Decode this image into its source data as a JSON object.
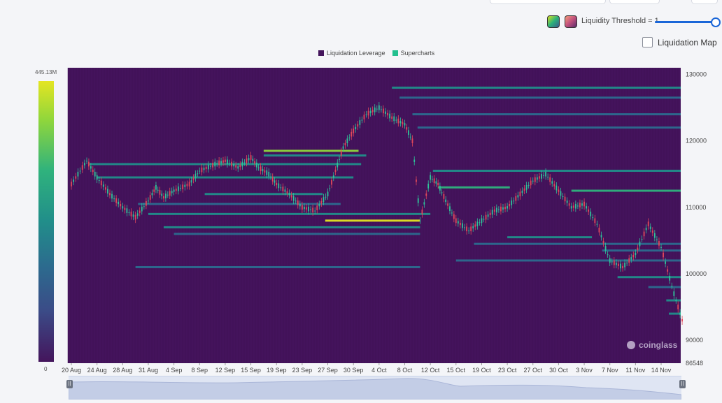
{
  "controls": {
    "threshold_label": "Liquidity Threshold = 1",
    "threshold_value": 1,
    "checkbox_label": "Liquidation Map",
    "checkbox_checked": false,
    "swatch_colors": [
      "#2bb27a",
      "#c04f7c"
    ]
  },
  "legend": {
    "items": [
      {
        "label": "Liquidation Leverage",
        "color": "#44155c"
      },
      {
        "label": "Supercharts",
        "color": "#23c08f"
      }
    ]
  },
  "color_scale": {
    "max_label": "445.13M",
    "min_label": "0"
  },
  "watermark": "coinglass",
  "navigator": {
    "handle_glyph": "||"
  },
  "chart_data": {
    "type": "heatmap",
    "title": "",
    "background_color": "#44135c",
    "y_range": [
      86548,
      131000
    ],
    "y_ticks": [
      {
        "value": 130000,
        "label": "130000"
      },
      {
        "value": 120000,
        "label": "120000"
      },
      {
        "value": 110000,
        "label": "110000"
      },
      {
        "value": 100000,
        "label": "100000"
      },
      {
        "value": 90000,
        "label": "90000"
      },
      {
        "value": 86548,
        "label": "86548"
      }
    ],
    "x_ticks": [
      "20 Aug",
      "24 Aug",
      "28 Aug",
      "31 Aug",
      "4 Sep",
      "8 Sep",
      "12 Sep",
      "15 Sep",
      "19 Sep",
      "23 Sep",
      "27 Sep",
      "30 Sep",
      "4 Oct",
      "8 Oct",
      "12 Oct",
      "15 Oct",
      "19 Oct",
      "23 Oct",
      "27 Oct",
      "30 Oct",
      "3 Nov",
      "7 Nov",
      "11 Nov",
      "14 Nov"
    ],
    "price_series": {
      "name": "Supercharts",
      "x_index": [
        0,
        0.6,
        1,
        1.5,
        2,
        2.5,
        3,
        3.3,
        3.6,
        4,
        4.6,
        5,
        5.6,
        6,
        6.5,
        7,
        7.3,
        7.7,
        8,
        8.5,
        9,
        9.5,
        10,
        10.3,
        10.6,
        11,
        11.5,
        12,
        12.5,
        13,
        13.3,
        13.6,
        14,
        14.3,
        14.6,
        15,
        15.5,
        16,
        16.5,
        17,
        17.5,
        18,
        18.5,
        19,
        19.5,
        20,
        20.5,
        21,
        21.5,
        22,
        22.5,
        23,
        23.5,
        23.9
      ],
      "values": [
        113500,
        117000,
        114500,
        112000,
        110000,
        108500,
        111000,
        113000,
        111500,
        112500,
        113500,
        115500,
        116500,
        117000,
        116000,
        117500,
        116000,
        115000,
        113500,
        112000,
        110000,
        109500,
        112000,
        115500,
        119000,
        121500,
        124000,
        125000,
        123500,
        122500,
        120000,
        108000,
        114500,
        113500,
        111000,
        108000,
        106500,
        108000,
        109500,
        110000,
        112000,
        114000,
        115000,
        112500,
        110000,
        110500,
        107500,
        102000,
        101000,
        103000,
        107500,
        104000,
        97000,
        92000
      ],
      "color_up": "#2fc39a",
      "color_down": "#e0485a"
    },
    "liquidity_bands": [
      {
        "level": 128000,
        "intensity": 0.55,
        "x_start": 12.5,
        "x_end": 24
      },
      {
        "level": 126500,
        "intensity": 0.4,
        "x_start": 12.8,
        "x_end": 24
      },
      {
        "level": 124000,
        "intensity": 0.3,
        "x_start": 13.3,
        "x_end": 24
      },
      {
        "level": 122000,
        "intensity": 0.25,
        "x_start": 13.5,
        "x_end": 24
      },
      {
        "level": 118500,
        "intensity": 0.8,
        "x_start": 7.5,
        "x_end": 11.2
      },
      {
        "level": 117800,
        "intensity": 0.5,
        "x_start": 7.5,
        "x_end": 11.5
      },
      {
        "level": 116500,
        "intensity": 0.45,
        "x_start": 0.7,
        "x_end": 11.3
      },
      {
        "level": 115500,
        "intensity": 0.5,
        "x_start": 14.1,
        "x_end": 24
      },
      {
        "level": 114500,
        "intensity": 0.45,
        "x_start": 1,
        "x_end": 11
      },
      {
        "level": 113000,
        "intensity": 0.7,
        "x_start": 14.3,
        "x_end": 17.1
      },
      {
        "level": 112500,
        "intensity": 0.65,
        "x_start": 19.5,
        "x_end": 24
      },
      {
        "level": 112000,
        "intensity": 0.5,
        "x_start": 5.2,
        "x_end": 9.8
      },
      {
        "level": 110500,
        "intensity": 0.35,
        "x_start": 2.6,
        "x_end": 10.5
      },
      {
        "level": 109000,
        "intensity": 0.55,
        "x_start": 3,
        "x_end": 14
      },
      {
        "level": 108000,
        "intensity": 0.95,
        "x_start": 9.9,
        "x_end": 13.6
      },
      {
        "level": 107000,
        "intensity": 0.5,
        "x_start": 3.6,
        "x_end": 13.6
      },
      {
        "level": 106000,
        "intensity": 0.4,
        "x_start": 4,
        "x_end": 13.6
      },
      {
        "level": 105500,
        "intensity": 0.55,
        "x_start": 17,
        "x_end": 20.3
      },
      {
        "level": 104500,
        "intensity": 0.35,
        "x_start": 15.7,
        "x_end": 24
      },
      {
        "level": 103500,
        "intensity": 0.35,
        "x_start": 20.7,
        "x_end": 24
      },
      {
        "level": 102000,
        "intensity": 0.3,
        "x_start": 15,
        "x_end": 24
      },
      {
        "level": 101000,
        "intensity": 0.3,
        "x_start": 2.5,
        "x_end": 13.6
      },
      {
        "level": 99500,
        "intensity": 0.5,
        "x_start": 21.3,
        "x_end": 24
      },
      {
        "level": 98000,
        "intensity": 0.4,
        "x_start": 22.5,
        "x_end": 24
      },
      {
        "level": 96000,
        "intensity": 0.55,
        "x_start": 23.2,
        "x_end": 24
      },
      {
        "level": 94000,
        "intensity": 0.45,
        "x_start": 23.3,
        "x_end": 24
      }
    ]
  }
}
